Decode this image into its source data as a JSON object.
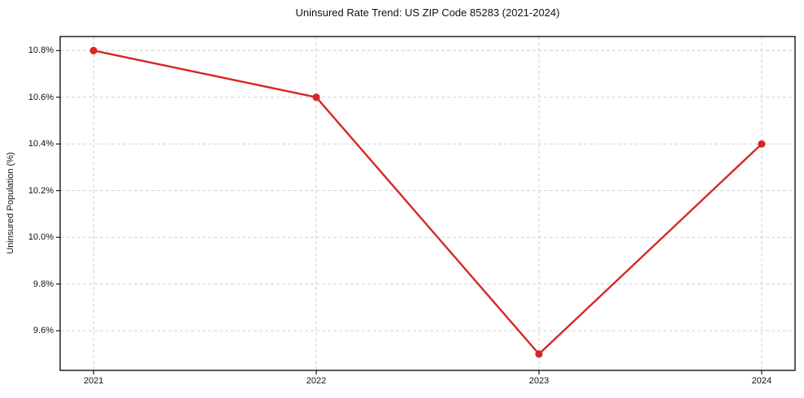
{
  "chart_data": {
    "type": "line",
    "title": "Uninsured Rate Trend: US ZIP Code 85283 (2021-2024)",
    "xlabel": "",
    "ylabel": "Uninsured Population (%)",
    "x": [
      2021,
      2022,
      2023,
      2024
    ],
    "values": [
      10.8,
      10.6,
      9.5,
      10.4
    ],
    "xticks": [
      2021,
      2022,
      2023,
      2024
    ],
    "xtick_labels": [
      "2021",
      "2022",
      "2023",
      "2024"
    ],
    "yticks": [
      9.6,
      9.8,
      10.0,
      10.2,
      10.4,
      10.6,
      10.8
    ],
    "ytick_labels": [
      "9.6%",
      "9.8%",
      "10.0%",
      "10.2%",
      "10.4%",
      "10.6%",
      "10.8%"
    ],
    "xlim": [
      2020.85,
      2024.15
    ],
    "ylim": [
      9.43,
      10.86
    ],
    "grid": true,
    "grid_style": "dashed",
    "legend": false,
    "line_color": "#d62728",
    "marker_color": "#d62728",
    "grid_color": "#cccccc",
    "spine_color": "#000000",
    "background": "#ffffff"
  }
}
